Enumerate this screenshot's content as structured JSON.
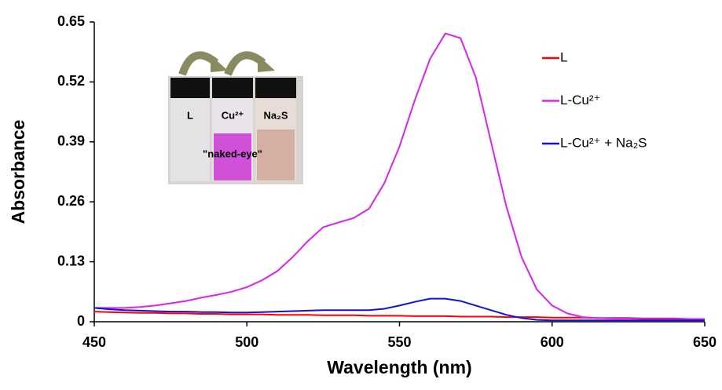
{
  "chart_data": {
    "type": "line",
    "xlabel": "Wavelength (nm)",
    "ylabel": "Absorbance",
    "x": [
      450,
      455,
      460,
      465,
      470,
      475,
      480,
      485,
      490,
      495,
      500,
      505,
      510,
      515,
      520,
      525,
      530,
      535,
      540,
      545,
      550,
      555,
      560,
      565,
      570,
      575,
      580,
      585,
      590,
      595,
      600,
      605,
      610,
      615,
      620,
      625,
      630,
      635,
      640,
      645,
      650
    ],
    "series": [
      {
        "name": "L",
        "color": "#ff0000",
        "values": [
          0.022,
          0.021,
          0.02,
          0.019,
          0.019,
          0.018,
          0.018,
          0.017,
          0.017,
          0.016,
          0.016,
          0.016,
          0.015,
          0.015,
          0.015,
          0.014,
          0.014,
          0.014,
          0.013,
          0.013,
          0.013,
          0.012,
          0.012,
          0.012,
          0.011,
          0.011,
          0.011,
          0.01,
          0.01,
          0.01,
          0.009,
          0.009,
          0.009,
          0.008,
          0.008,
          0.008,
          0.007,
          0.007,
          0.007,
          0.006,
          0.006
        ]
      },
      {
        "name": "L-Cu²⁺",
        "color": "#e020f0",
        "values": [
          0.03,
          0.03,
          0.03,
          0.032,
          0.035,
          0.04,
          0.045,
          0.052,
          0.058,
          0.065,
          0.075,
          0.09,
          0.11,
          0.14,
          0.175,
          0.205,
          0.215,
          0.225,
          0.245,
          0.3,
          0.38,
          0.48,
          0.57,
          0.625,
          0.615,
          0.53,
          0.39,
          0.25,
          0.14,
          0.07,
          0.035,
          0.018,
          0.01,
          0.008,
          0.007,
          0.007,
          0.006,
          0.006,
          0.006,
          0.006,
          0.006
        ]
      },
      {
        "name": "L-Cu²⁺ + Na₂S",
        "color": "#1010e0",
        "values": [
          0.03,
          0.027,
          0.025,
          0.024,
          0.023,
          0.022,
          0.022,
          0.021,
          0.021,
          0.02,
          0.02,
          0.021,
          0.022,
          0.023,
          0.024,
          0.025,
          0.025,
          0.025,
          0.025,
          0.028,
          0.035,
          0.043,
          0.05,
          0.05,
          0.045,
          0.035,
          0.025,
          0.015,
          0.008,
          0.004,
          0.003,
          0.003,
          0.003,
          0.003,
          0.003,
          0.003,
          0.003,
          0.003,
          0.003,
          0.003,
          0.003
        ]
      }
    ],
    "xlim": [
      450,
      650
    ],
    "xticks": [
      450,
      500,
      550,
      600,
      650
    ],
    "ylim": [
      0,
      0.65
    ],
    "yticks": [
      0,
      0.13,
      0.26,
      0.39,
      0.52,
      0.65
    ],
    "legend": "upper right",
    "annotations": {
      "vial_labels": [
        "L",
        "Cu²⁺",
        "Na₂S"
      ],
      "caption": "\"naked-eye\""
    }
  }
}
